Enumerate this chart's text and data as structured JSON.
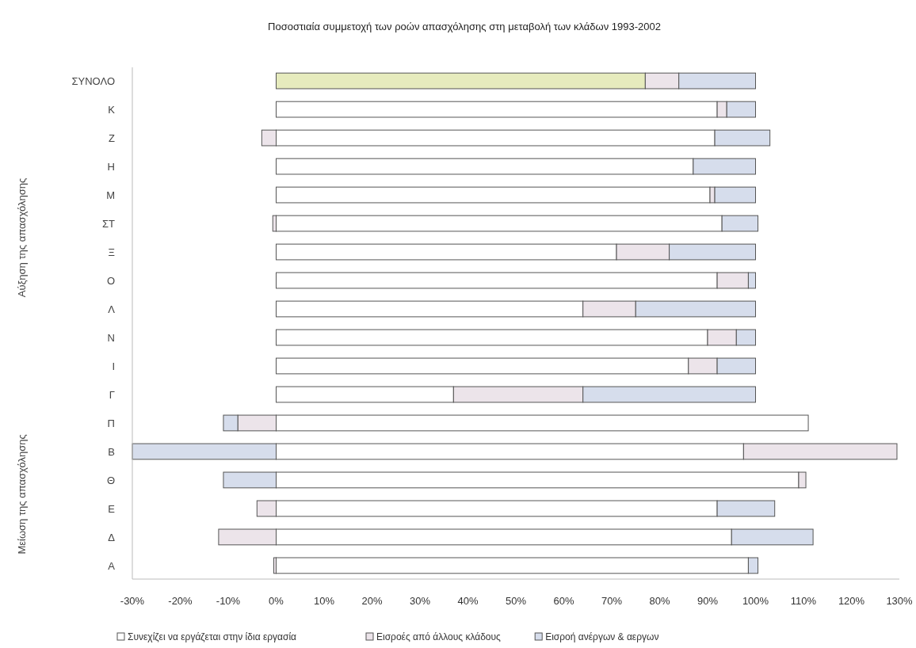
{
  "chart_data": {
    "type": "bar",
    "orientation": "horizontal",
    "stacked": true,
    "title": "Ποσοστιαία συμμετοχή των ροών απασχόλησης στη μεταβολή των κλάδων 1993-2002",
    "categories": [
      "ΣΥΝΟΛΟ",
      "Κ",
      "Ζ",
      "Η",
      "Μ",
      "ΣΤ",
      "Ξ",
      "Ο",
      "Λ",
      "Ν",
      "Ι",
      "Γ",
      "Π",
      "Β",
      "Θ",
      "Ε",
      "Δ",
      "Α"
    ],
    "series": [
      {
        "name": "Συνεχίζει να εργάζεται στην ίδια εργασία",
        "color": "#ffffff",
        "colors": [
          "#e6ebbd",
          "#ffffff",
          "#ffffff",
          "#ffffff",
          "#ffffff",
          "#ffffff",
          "#ffffff",
          "#ffffff",
          "#ffffff",
          "#ffffff",
          "#ffffff",
          "#ffffff",
          "#ffffff",
          "#ffffff",
          "#ffffff",
          "#ffffff",
          "#ffffff",
          "#ffffff"
        ],
        "values": [
          77,
          92,
          91.5,
          87,
          90.5,
          93,
          71,
          92,
          64,
          90,
          86,
          37,
          111,
          97.5,
          109,
          92,
          95,
          98.5
        ]
      },
      {
        "name": "Εισροές από άλλους κλάδους",
        "color": "#ece4ea",
        "values": [
          7,
          2,
          -3,
          null,
          1,
          -0.7,
          11,
          6.5,
          11,
          6,
          6,
          27,
          -8,
          32,
          1.5,
          -4,
          -12,
          -0.5
        ]
      },
      {
        "name": "Εισροή ανέργων & αεργων",
        "color": "#d6ddec",
        "values": [
          16,
          6,
          11.5,
          13,
          8.5,
          7.5,
          18,
          1.5,
          25,
          4,
          8,
          36,
          -3,
          -30,
          -11,
          12,
          17,
          2
        ]
      }
    ],
    "xlim": [
      -30,
      130
    ],
    "xticks": [
      {
        "value": -30,
        "label": "-30%"
      },
      {
        "value": -20,
        "label": "-20%"
      },
      {
        "value": -10,
        "label": "-10%"
      },
      {
        "value": 0,
        "label": "0%"
      },
      {
        "value": 10,
        "label": "10%"
      },
      {
        "value": 20,
        "label": "20%"
      },
      {
        "value": 30,
        "label": "30%"
      },
      {
        "value": 40,
        "label": "40%"
      },
      {
        "value": 50,
        "label": "50%"
      },
      {
        "value": 60,
        "label": "60%"
      },
      {
        "value": 70,
        "label": "70%"
      },
      {
        "value": 80,
        "label": "80%"
      },
      {
        "value": 90,
        "label": "90%"
      },
      {
        "value": 100,
        "label": "100%"
      },
      {
        "value": 110,
        "label": "110%"
      },
      {
        "value": 120,
        "label": "120%"
      },
      {
        "value": 130,
        "label": "130%"
      }
    ],
    "annotations": [
      "Αύξηση της απασχόλησης",
      "Μείωση της απασχόλησης"
    ],
    "legend": "bottom",
    "grid": false
  }
}
